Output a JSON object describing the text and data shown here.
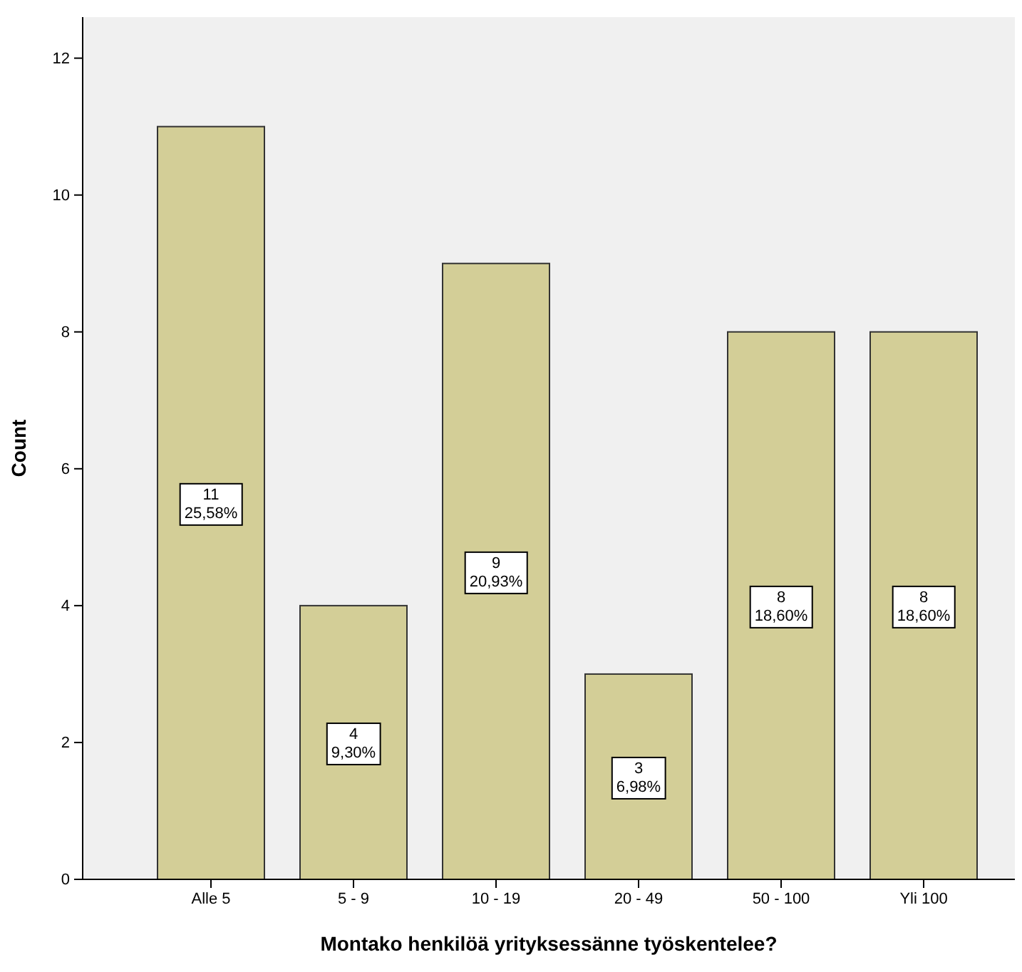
{
  "chart_data": {
    "type": "bar",
    "xlabel": "Montako henkilöä yrityksessänne työskentelee?",
    "ylabel": "Count",
    "categories": [
      "Alle 5",
      "5 - 9",
      "10 - 19",
      "20 - 49",
      "50 - 100",
      "Yli 100"
    ],
    "values": [
      11,
      4,
      9,
      3,
      8,
      8
    ],
    "value_labels": [
      "11\n25,58%",
      "4\n9,30%",
      "9\n20,93%",
      "3\n6,98%",
      "8\n18,60%",
      "8\n18,60%"
    ],
    "color": "#d3ce97",
    "ylim": [
      0,
      12.6
    ],
    "yticks": [
      0,
      2,
      4,
      6,
      8,
      10,
      12
    ],
    "grid": false
  }
}
